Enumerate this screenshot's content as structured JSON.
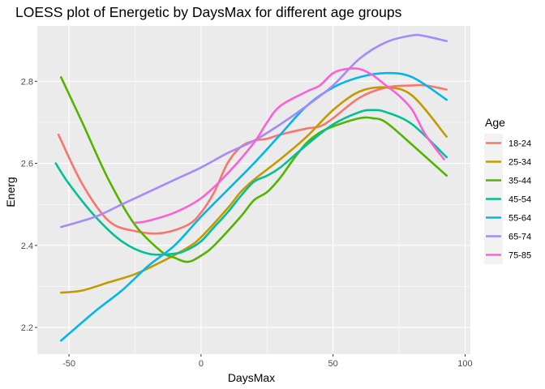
{
  "chart_data": {
    "type": "line",
    "title": "LOESS plot of Energetic by DaysMax for different age groups",
    "xlabel": "DaysMax",
    "ylabel": "Energ",
    "xlim": [
      -62,
      102
    ],
    "ylim": [
      2.135,
      2.935
    ],
    "x_ticks": [
      -50,
      0,
      50,
      100
    ],
    "x_tick_labels": [
      "-50",
      "0",
      "50",
      "100"
    ],
    "y_ticks": [
      2.2,
      2.4,
      2.6,
      2.8
    ],
    "y_tick_labels": [
      "2.2",
      "2.4",
      "2.6",
      "2.8"
    ],
    "grid": true,
    "legend_title": "Age",
    "legend_position": "right",
    "series": [
      {
        "name": "18-24",
        "color": "#F8766D",
        "points": [
          [
            -54,
            2.67
          ],
          [
            -45,
            2.55
          ],
          [
            -35,
            2.46
          ],
          [
            -25,
            2.435
          ],
          [
            -15,
            2.43
          ],
          [
            -5,
            2.45
          ],
          [
            0,
            2.48
          ],
          [
            5,
            2.53
          ],
          [
            10,
            2.6
          ],
          [
            15,
            2.64
          ],
          [
            20,
            2.655
          ],
          [
            25,
            2.66
          ],
          [
            30,
            2.67
          ],
          [
            40,
            2.685
          ],
          [
            45,
            2.69
          ],
          [
            50,
            2.71
          ],
          [
            60,
            2.76
          ],
          [
            70,
            2.785
          ],
          [
            80,
            2.79
          ],
          [
            85,
            2.79
          ],
          [
            93,
            2.78
          ]
        ]
      },
      {
        "name": "25-34",
        "color": "#C49A00",
        "points": [
          [
            -53,
            2.285
          ],
          [
            -45,
            2.29
          ],
          [
            -35,
            2.31
          ],
          [
            -25,
            2.33
          ],
          [
            -15,
            2.36
          ],
          [
            -5,
            2.395
          ],
          [
            0,
            2.42
          ],
          [
            10,
            2.49
          ],
          [
            15,
            2.53
          ],
          [
            20,
            2.56
          ],
          [
            30,
            2.61
          ],
          [
            40,
            2.665
          ],
          [
            50,
            2.73
          ],
          [
            60,
            2.775
          ],
          [
            70,
            2.785
          ],
          [
            80,
            2.765
          ],
          [
            93,
            2.665
          ]
        ]
      },
      {
        "name": "35-44",
        "color": "#53B400",
        "points": [
          [
            -53,
            2.81
          ],
          [
            -45,
            2.7
          ],
          [
            -35,
            2.56
          ],
          [
            -25,
            2.45
          ],
          [
            -15,
            2.385
          ],
          [
            -10,
            2.37
          ],
          [
            -5,
            2.36
          ],
          [
            0,
            2.375
          ],
          [
            5,
            2.4
          ],
          [
            15,
            2.47
          ],
          [
            20,
            2.51
          ],
          [
            25,
            2.53
          ],
          [
            30,
            2.565
          ],
          [
            35,
            2.61
          ],
          [
            40,
            2.65
          ],
          [
            45,
            2.675
          ],
          [
            50,
            2.69
          ],
          [
            60,
            2.71
          ],
          [
            65,
            2.71
          ],
          [
            70,
            2.7
          ],
          [
            80,
            2.645
          ],
          [
            93,
            2.57
          ]
        ]
      },
      {
        "name": "45-54",
        "color": "#00C094",
        "points": [
          [
            -55,
            2.6
          ],
          [
            -50,
            2.55
          ],
          [
            -40,
            2.47
          ],
          [
            -30,
            2.41
          ],
          [
            -20,
            2.38
          ],
          [
            -10,
            2.38
          ],
          [
            -5,
            2.39
          ],
          [
            0,
            2.41
          ],
          [
            5,
            2.445
          ],
          [
            10,
            2.48
          ],
          [
            15,
            2.52
          ],
          [
            20,
            2.555
          ],
          [
            25,
            2.57
          ],
          [
            30,
            2.59
          ],
          [
            40,
            2.645
          ],
          [
            50,
            2.695
          ],
          [
            60,
            2.725
          ],
          [
            65,
            2.73
          ],
          [
            70,
            2.725
          ],
          [
            80,
            2.695
          ],
          [
            93,
            2.615
          ]
        ]
      },
      {
        "name": "55-64",
        "color": "#00B6EB",
        "points": [
          [
            -53,
            2.168
          ],
          [
            -40,
            2.24
          ],
          [
            -30,
            2.29
          ],
          [
            -20,
            2.35
          ],
          [
            -10,
            2.4
          ],
          [
            0,
            2.47
          ],
          [
            10,
            2.535
          ],
          [
            20,
            2.6
          ],
          [
            30,
            2.67
          ],
          [
            40,
            2.74
          ],
          [
            50,
            2.785
          ],
          [
            60,
            2.81
          ],
          [
            70,
            2.82
          ],
          [
            80,
            2.81
          ],
          [
            93,
            2.755
          ]
        ]
      },
      {
        "name": "65-74",
        "color": "#A58AFF",
        "points": [
          [
            -53,
            2.445
          ],
          [
            -40,
            2.47
          ],
          [
            -30,
            2.5
          ],
          [
            -20,
            2.53
          ],
          [
            -10,
            2.56
          ],
          [
            0,
            2.59
          ],
          [
            10,
            2.625
          ],
          [
            20,
            2.655
          ],
          [
            30,
            2.695
          ],
          [
            40,
            2.74
          ],
          [
            50,
            2.79
          ],
          [
            60,
            2.855
          ],
          [
            70,
            2.895
          ],
          [
            80,
            2.912
          ],
          [
            85,
            2.91
          ],
          [
            93,
            2.898
          ]
        ]
      },
      {
        "name": "75-85",
        "color": "#FB61D7",
        "points": [
          [
            -25,
            2.455
          ],
          [
            -20,
            2.46
          ],
          [
            -10,
            2.48
          ],
          [
            0,
            2.515
          ],
          [
            10,
            2.575
          ],
          [
            20,
            2.65
          ],
          [
            25,
            2.7
          ],
          [
            30,
            2.74
          ],
          [
            40,
            2.775
          ],
          [
            45,
            2.79
          ],
          [
            50,
            2.82
          ],
          [
            55,
            2.83
          ],
          [
            60,
            2.83
          ],
          [
            65,
            2.815
          ],
          [
            70,
            2.79
          ],
          [
            75,
            2.765
          ],
          [
            80,
            2.73
          ],
          [
            85,
            2.67
          ],
          [
            92,
            2.61
          ]
        ]
      }
    ]
  }
}
